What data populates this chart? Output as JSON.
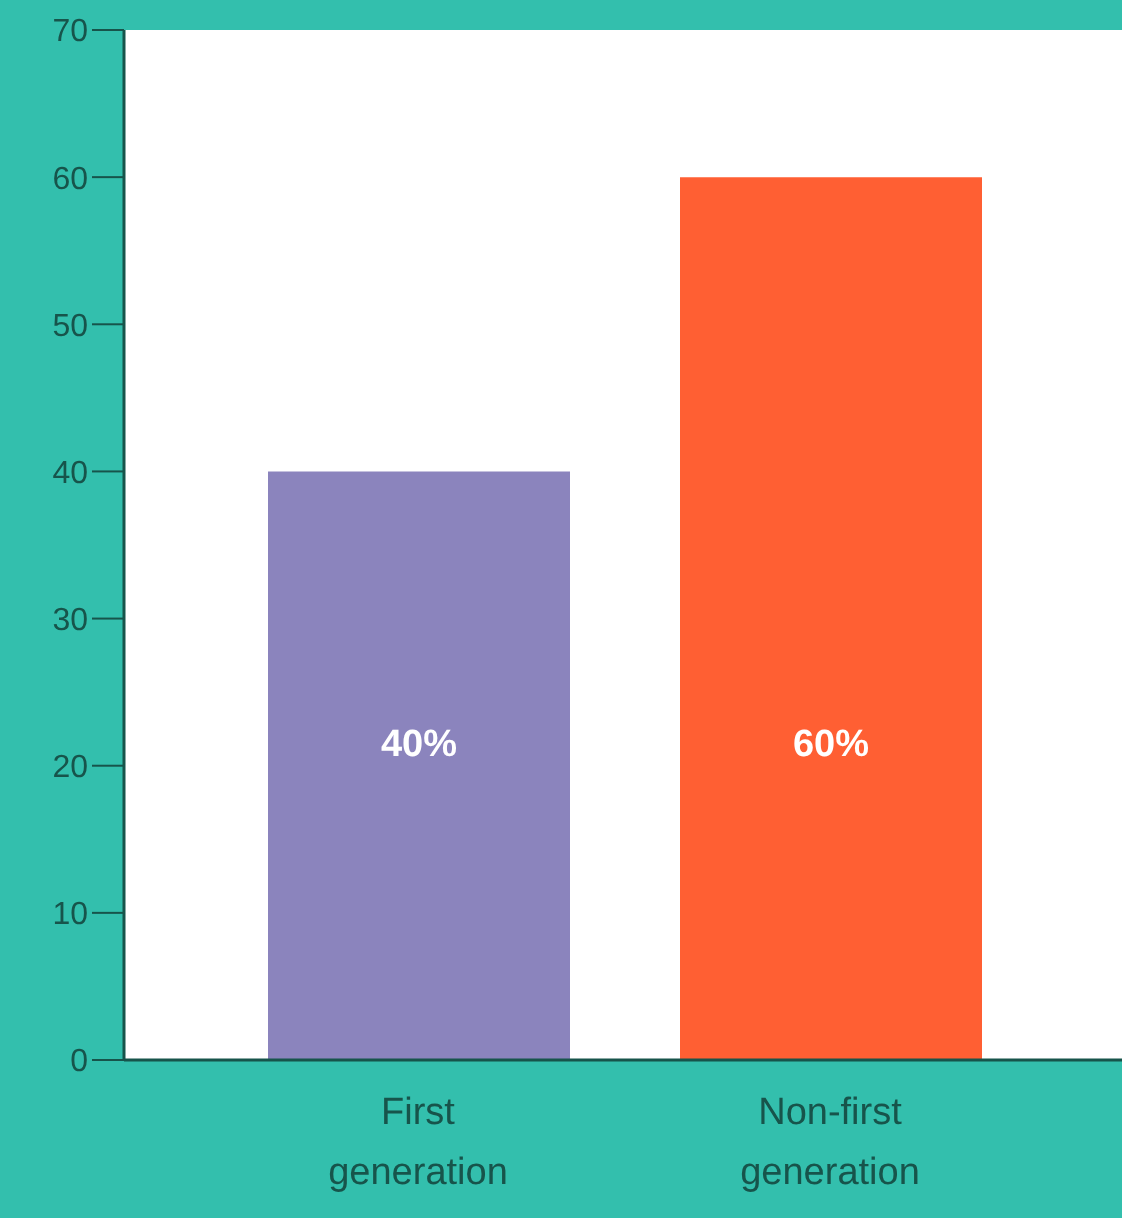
{
  "chart_data": {
    "type": "bar",
    "categories": [
      "First generation",
      "Non-first generation"
    ],
    "values": [
      40,
      60
    ],
    "colors": [
      "#8b84bd",
      "#ff5f33"
    ],
    "value_labels": [
      "40%",
      "60%"
    ],
    "ylim": [
      0,
      70
    ],
    "yticks": [
      0,
      10,
      20,
      30,
      40,
      50,
      60,
      70
    ],
    "grid": false
  }
}
